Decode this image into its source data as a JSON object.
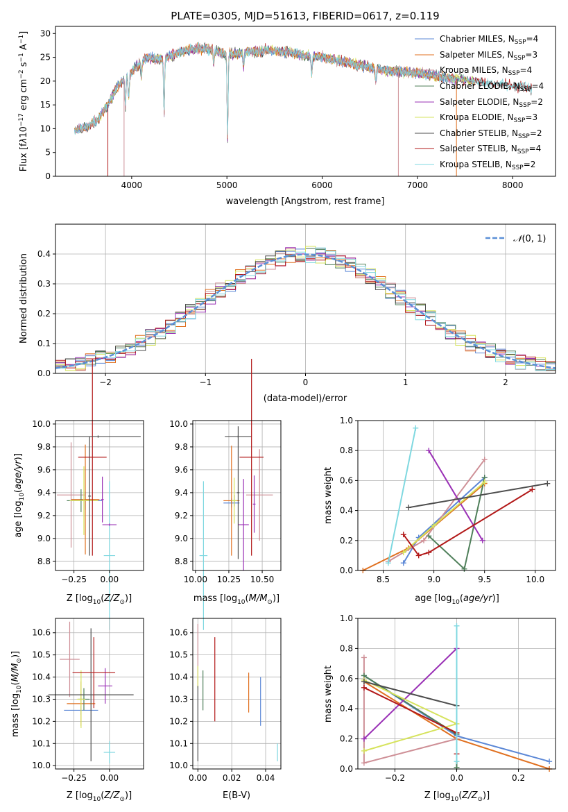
{
  "colors": {
    "chabrier_miles": "#5b87d6",
    "salpeter_miles": "#e07020",
    "kroupa_miles": "#ce8f96",
    "chabrier_elodie": "#4f7f5a",
    "salpeter_elodie": "#9a31b6",
    "kroupa_elodie": "#d6e35c",
    "chabrier_stelib": "#4d4d4d",
    "salpeter_stelib": "#b21818",
    "kroupa_stelib": "#7fd8e0",
    "normal": "#5a8fd6"
  },
  "chart_data": [
    {
      "id": "spectrum",
      "type": "line",
      "title": "PLATE=0305, MJD=51613, FIBERID=0617, z=0.119",
      "xlabel": "wavelength [Angstrom, rest frame]",
      "ylabel": "Flux [f_λ10^−17 erg cm^−2 s^−1 A^−1]",
      "xlim": [
        3200,
        8450
      ],
      "ylim": [
        0,
        31.5
      ],
      "xticks": [
        4000,
        5000,
        6000,
        7000,
        8000
      ],
      "yticks": [
        0,
        5,
        10,
        15,
        20,
        25,
        30
      ],
      "grid": false,
      "legend": "top-right",
      "legend_entries": [
        "Chabrier MILES, N_SSP=4",
        "Salpeter MILES, N_SSP=3",
        "Kroupa MILES, N_SSP=4",
        "Chabrier ELODIE, N_SSP=4",
        "Salpeter ELODIE, N_SSP=2",
        "Kroupa ELODIE, N_SSP=3",
        "Chabrier STELIB, N_SSP=2",
        "Salpeter STELIB, N_SSP=4",
        "Kroupa STELIB, N_SSP=2"
      ],
      "continuum": {
        "x": [
          3380,
          3450,
          3550,
          3650,
          3750,
          3850,
          3950,
          4050,
          4150,
          4300,
          4500,
          4700,
          4850,
          5000,
          5200,
          5400,
          5600,
          5800,
          6000,
          6200,
          6400,
          6600,
          6800,
          7000,
          7200,
          7400,
          7600,
          7800,
          8000,
          8200
        ],
        "y": [
          9.5,
          10,
          10.5,
          12,
          15,
          19,
          21,
          23,
          25,
          24.5,
          26,
          27,
          26.5,
          25.5,
          26,
          26.5,
          26.2,
          25.5,
          25,
          24.2,
          23.3,
          22.5,
          22,
          21.7,
          21,
          20.5,
          20,
          19.5,
          19,
          18.5
        ]
      },
      "absorption_lines": [
        {
          "x": 3934,
          "depth": 6
        },
        {
          "x": 3969,
          "depth": 5
        },
        {
          "x": 4102,
          "depth": 3
        },
        {
          "x": 4340,
          "depth": 12
        },
        {
          "x": 4861,
          "depth": 3
        },
        {
          "x": 5007,
          "depth": 18
        },
        {
          "x": 5175,
          "depth": 3
        },
        {
          "x": 5890,
          "depth": 4
        },
        {
          "x": 6563,
          "depth": 3
        }
      ]
    },
    {
      "id": "residual-hist",
      "type": "area",
      "xlabel": "(data-model)/error",
      "ylabel": "Normed distribution",
      "xlim": [
        -2.5,
        2.5
      ],
      "ylim": [
        0,
        0.5
      ],
      "xticks": [
        -2,
        -1,
        0,
        1,
        2
      ],
      "yticks": [
        0,
        0.1,
        0.2,
        0.3,
        0.4
      ],
      "grid": true,
      "legend": "top-right",
      "legend_label": "N(0,1)"
    },
    {
      "id": "age-vs-Z",
      "type": "scatter",
      "xlabel": "Z [log10(Z/Z_sun)]",
      "ylabel": "age [log10(age/yr)]",
      "xlim": [
        -0.38,
        0.24
      ],
      "ylim": [
        8.72,
        10.03
      ],
      "xticks": [
        -0.25,
        0.0
      ],
      "yticks": [
        8.8,
        9.0,
        9.2,
        9.4,
        9.6,
        9.8,
        10.0
      ],
      "grid": true,
      "points": [
        {
          "model": "chabrier_miles",
          "x": -0.17,
          "y": 9.33,
          "xerr": 0.12,
          "yerr": 0.08
        },
        {
          "model": "salpeter_miles",
          "x": -0.17,
          "y": 9.34,
          "xerr": 0.1,
          "yerr": 0.48
        },
        {
          "model": "kroupa_miles",
          "x": -0.27,
          "y": 9.38,
          "xerr": 0.1,
          "yerr": 0.46
        },
        {
          "model": "chabrier_elodie",
          "x": -0.2,
          "y": 9.33,
          "xerr": 0.1,
          "yerr": 0.1
        },
        {
          "model": "salpeter_elodie",
          "x": -0.05,
          "y": 9.34,
          "xerr": 0.01,
          "yerr": 0.2
        },
        {
          "model": "kroupa_elodie",
          "x": -0.18,
          "y": 9.33,
          "xerr": 0.1,
          "yerr": 0.3
        },
        {
          "model": "chabrier_stelib",
          "x": -0.14,
          "y": 9.37,
          "xerr": 0.01,
          "yerr": 0.52
        },
        {
          "model": "salpeter_stelib",
          "x": -0.12,
          "y": 9.71,
          "xerr": 0.1,
          "yerr": 0.86
        },
        {
          "model": "kroupa_stelib",
          "x": 0.0,
          "y": 8.85,
          "xerr": 0.04,
          "yerr": 0.65
        },
        {
          "model": "chabrier_stelib",
          "x": -0.08,
          "y": 9.89,
          "xerr": 0.3,
          "yerr": 0.01
        },
        {
          "model": "salpeter_elodie",
          "x": 0.0,
          "y": 9.12,
          "xerr": 0.05,
          "yerr": 0.01
        }
      ]
    },
    {
      "id": "age-vs-mass",
      "type": "scatter",
      "xlabel": "mass [log10(M/M_sun)]",
      "ylabel": "",
      "xlim": [
        9.98,
        10.64
      ],
      "ylim": [
        8.72,
        10.03
      ],
      "xticks": [
        10.0,
        10.25,
        10.5
      ],
      "yticks": [
        8.8,
        9.0,
        9.2,
        9.4,
        9.6,
        9.8,
        10.0
      ],
      "grid": true,
      "points": [
        {
          "model": "chabrier_miles",
          "x": 10.27,
          "y": 9.31,
          "xerr": 0.06,
          "yerr": 0.04
        },
        {
          "model": "salpeter_miles",
          "x": 10.27,
          "y": 9.33,
          "xerr": 0.06,
          "yerr": 0.48
        },
        {
          "model": "kroupa_miles",
          "x": 10.48,
          "y": 9.38,
          "xerr": 0.1,
          "yerr": 0.4
        },
        {
          "model": "chabrier_elodie",
          "x": 10.29,
          "y": 9.33,
          "xerr": 0.02,
          "yerr": 0.05
        },
        {
          "model": "salpeter_elodie",
          "x": 10.36,
          "y": 9.12,
          "xerr": 0.04,
          "yerr": 0.4
        },
        {
          "model": "kroupa_elodie",
          "x": 10.29,
          "y": 9.33,
          "xerr": 0.02,
          "yerr": 0.2
        },
        {
          "model": "chabrier_stelib",
          "x": 10.32,
          "y": 9.89,
          "xerr": 0.1,
          "yerr": 0.01
        },
        {
          "model": "salpeter_stelib",
          "x": 10.42,
          "y": 9.71,
          "xerr": 0.09,
          "yerr": 0.86
        },
        {
          "model": "kroupa_stelib",
          "x": 10.06,
          "y": 8.85,
          "xerr": 0.03,
          "yerr": 0.65
        },
        {
          "model": "chabrier_stelib",
          "x": 10.32,
          "y": 9.4,
          "xerr": 0.01,
          "yerr": 0.58
        },
        {
          "model": "salpeter_elodie",
          "x": 10.44,
          "y": 9.3,
          "xerr": 0.01,
          "yerr": 0.25
        }
      ]
    },
    {
      "id": "mass-weight-vs-age",
      "type": "line",
      "xlabel": "age [log10(age/yr)]",
      "ylabel": "mass weight",
      "xlim": [
        8.25,
        10.2
      ],
      "ylim": [
        0,
        1.0
      ],
      "xticks": [
        8.5,
        9.0,
        9.5,
        10.0
      ],
      "yticks": [
        0,
        0.2,
        0.4,
        0.6,
        0.8,
        1.0
      ],
      "grid": true,
      "series": [
        {
          "model": "chabrier_miles",
          "x": [
            8.7,
            8.85,
            9.5
          ],
          "y": [
            0.05,
            0.22,
            0.62
          ]
        },
        {
          "model": "salpeter_miles",
          "x": [
            8.3,
            8.75,
            9.5
          ],
          "y": [
            0.0,
            0.15,
            0.58
          ]
        },
        {
          "model": "kroupa_miles",
          "x": [
            8.55,
            8.9,
            9.5
          ],
          "y": [
            0.06,
            0.2,
            0.74
          ]
        },
        {
          "model": "chabrier_elodie",
          "x": [
            8.95,
            9.3,
            9.5
          ],
          "y": [
            0.23,
            0.01,
            0.62
          ]
        },
        {
          "model": "salpeter_elodie",
          "x": [
            8.95,
            9.48
          ],
          "y": [
            0.8,
            0.2
          ]
        },
        {
          "model": "kroupa_elodie",
          "x": [
            8.7,
            9.0,
            9.5
          ],
          "y": [
            0.12,
            0.3,
            0.59
          ]
        },
        {
          "model": "chabrier_stelib",
          "x": [
            8.75,
            10.12
          ],
          "y": [
            0.42,
            0.58
          ]
        },
        {
          "model": "salpeter_stelib",
          "x": [
            8.7,
            8.85,
            8.95,
            9.97
          ],
          "y": [
            0.24,
            0.1,
            0.12,
            0.54
          ]
        },
        {
          "model": "kroupa_stelib",
          "x": [
            8.55,
            8.82
          ],
          "y": [
            0.05,
            0.95
          ]
        }
      ]
    },
    {
      "id": "mass-vs-Z",
      "type": "scatter",
      "xlabel": "Z [log10(Z/Z_sun)]",
      "ylabel": "mass [log10(M/M_sun)]",
      "xlim": [
        -0.38,
        0.24
      ],
      "ylim": [
        9.985,
        10.665
      ],
      "xticks": [
        -0.25,
        0.0
      ],
      "yticks": [
        10.0,
        10.1,
        10.2,
        10.3,
        10.4,
        10.5,
        10.6
      ],
      "grid": true,
      "points": [
        {
          "model": "chabrier_miles",
          "x": -0.2,
          "y": 10.25,
          "xerr": 0.12,
          "yerr": 0.02
        },
        {
          "model": "salpeter_miles",
          "x": -0.2,
          "y": 10.28,
          "xerr": 0.1,
          "yerr": 0.1
        },
        {
          "model": "kroupa_miles",
          "x": -0.28,
          "y": 10.48,
          "xerr": 0.07,
          "yerr": 0.17
        },
        {
          "model": "chabrier_elodie",
          "x": -0.18,
          "y": 10.3,
          "xerr": 0.04,
          "yerr": 0.05
        },
        {
          "model": "salpeter_elodie",
          "x": -0.03,
          "y": 10.36,
          "xerr": 0.05,
          "yerr": 0.08
        },
        {
          "model": "kroupa_elodie",
          "x": -0.2,
          "y": 10.3,
          "xerr": 0.03,
          "yerr": 0.13
        },
        {
          "model": "chabrier_stelib",
          "x": -0.13,
          "y": 10.32,
          "xerr": 0.3,
          "yerr": 0.3
        },
        {
          "model": "salpeter_stelib",
          "x": -0.11,
          "y": 10.42,
          "xerr": 0.15,
          "yerr": 0.16
        },
        {
          "model": "kroupa_stelib",
          "x": 0.0,
          "y": 10.06,
          "xerr": 0.04,
          "yerr": 0.05
        }
      ]
    },
    {
      "id": "mass-vs-ebv",
      "type": "scatter",
      "xlabel": "E(B-V)",
      "ylabel": "",
      "xlim": [
        -0.003,
        0.049
      ],
      "ylim": [
        9.985,
        10.665
      ],
      "xticks": [
        0.0,
        0.02,
        0.04
      ],
      "yticks": [
        10.0,
        10.1,
        10.2,
        10.3,
        10.4,
        10.5,
        10.6
      ],
      "grid": true,
      "points": [
        {
          "model": "chabrier_miles",
          "x": 0.037,
          "y": 10.29,
          "yerr": 0.11
        },
        {
          "model": "salpeter_miles",
          "x": 0.03,
          "y": 10.33,
          "yerr": 0.09
        },
        {
          "model": "kroupa_miles",
          "x": 0.0,
          "y": 10.5,
          "yerr": 0.14
        },
        {
          "model": "chabrier_elodie",
          "x": 0.003,
          "y": 10.34,
          "yerr": 0.09
        },
        {
          "model": "kroupa_elodie",
          "x": 0.0,
          "y": 10.4,
          "yerr": 0.05
        },
        {
          "model": "chabrier_stelib",
          "x": 0.0,
          "y": 10.19,
          "yerr": 0.17
        },
        {
          "model": "salpeter_stelib",
          "x": 0.01,
          "y": 10.39,
          "yerr": 0.19
        },
        {
          "model": "kroupa_stelib",
          "x": 0.047,
          "y": 10.06,
          "yerr": 0.04
        }
      ]
    },
    {
      "id": "mass-weight-vs-Z",
      "type": "line",
      "xlabel": "Z [log10(Z/Z_sun)]",
      "ylabel": "mass weight",
      "xlim": [
        -0.32,
        0.32
      ],
      "ylim": [
        0,
        1.0
      ],
      "xticks": [
        -0.2,
        0.0,
        0.2
      ],
      "yticks": [
        0,
        0.2,
        0.4,
        0.6,
        0.8,
        1.0
      ],
      "grid": true,
      "series": [
        {
          "model": "chabrier_miles",
          "x": [
            -0.3,
            0.0,
            0.3
          ],
          "y": [
            0.62,
            0.22,
            0.05
          ]
        },
        {
          "model": "salpeter_miles",
          "x": [
            -0.3,
            0.0,
            0.3
          ],
          "y": [
            0.58,
            0.2,
            0.0
          ]
        },
        {
          "model": "kroupa_miles",
          "x": [
            -0.3,
            -0.3,
            0.0
          ],
          "y": [
            0.74,
            0.04,
            0.2
          ]
        },
        {
          "model": "chabrier_elodie",
          "x": [
            -0.3,
            0.0,
            0.0
          ],
          "y": [
            0.62,
            0.23,
            0.01
          ]
        },
        {
          "model": "salpeter_elodie",
          "x": [
            -0.3,
            0.0
          ],
          "y": [
            0.2,
            0.8
          ]
        },
        {
          "model": "kroupa_elodie",
          "x": [
            -0.3,
            0.0,
            -0.3
          ],
          "y": [
            0.59,
            0.3,
            0.12
          ]
        },
        {
          "model": "chabrier_stelib",
          "x": [
            -0.3,
            0.0
          ],
          "y": [
            0.58,
            0.42
          ]
        },
        {
          "model": "salpeter_stelib",
          "x": [
            -0.3,
            0.0,
            0.0
          ],
          "y": [
            0.54,
            0.24,
            0.1
          ]
        },
        {
          "model": "kroupa_stelib",
          "x": [
            0.0,
            0.0
          ],
          "y": [
            0.95,
            0.05
          ]
        }
      ]
    }
  ]
}
